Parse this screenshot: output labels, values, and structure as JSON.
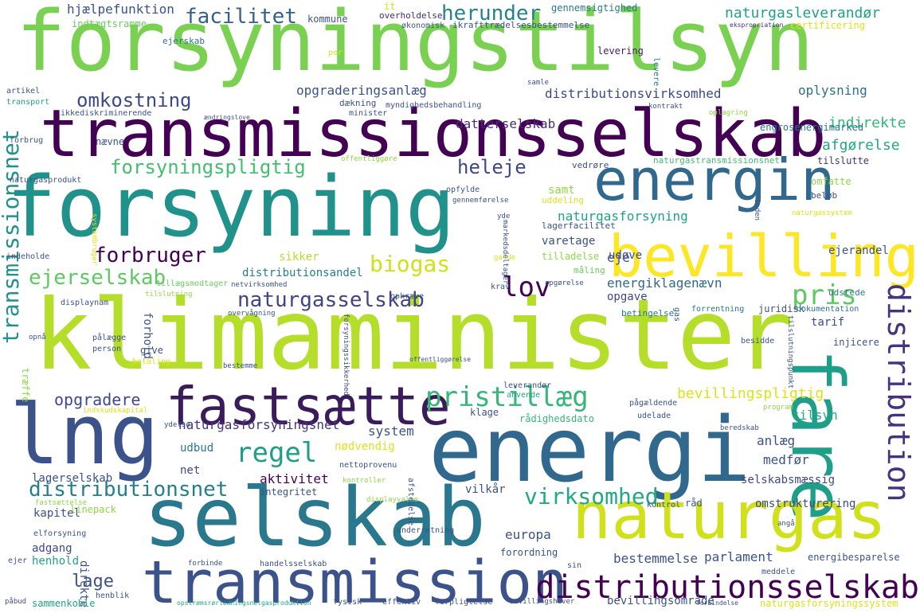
{
  "words": [
    {
      "text": "forsyningstilsyn",
      "color": "#7ad151"
    },
    {
      "text": "transmissionsselskab",
      "color": "#440154"
    },
    {
      "text": "forsyning",
      "color": "#21918c"
    },
    {
      "text": "energin",
      "color": "#31688e"
    },
    {
      "text": "bevilling",
      "color": "#fde725"
    },
    {
      "text": "klimaminister",
      "color": "#b5de2b"
    },
    {
      "text": "fastsætte",
      "color": "#3b1c5a"
    },
    {
      "text": "lng",
      "color": "#3b528b"
    },
    {
      "text": "energi",
      "color": "#31688e"
    },
    {
      "text": "fare",
      "color": "#1f9e89"
    },
    {
      "text": "selskab",
      "color": "#2a788e"
    },
    {
      "text": "naturgas",
      "color": "#d0e11c"
    },
    {
      "text": "transmission",
      "color": "#3b528b"
    },
    {
      "text": "distributionsselskab",
      "color": "#440154"
    },
    {
      "text": "distribution",
      "color": "#46337e"
    },
    {
      "text": "transmissionsnet",
      "color": "#21918c"
    },
    {
      "text": "distributionsnet",
      "color": "#277f8e"
    },
    {
      "text": "pristillæg",
      "color": "#35b779"
    },
    {
      "text": "regel",
      "color": "#1f9e89"
    },
    {
      "text": "virksomhed",
      "color": "#22a884"
    },
    {
      "text": "naturgasselskab",
      "color": "#414487"
    },
    {
      "text": "ejerselskab",
      "color": "#5ec962"
    },
    {
      "text": "forbruger",
      "color": "#440154"
    },
    {
      "text": "biogas",
      "color": "#d0e11c"
    },
    {
      "text": "lov",
      "color": "#440154"
    },
    {
      "text": "pris",
      "color": "#5ec962"
    },
    {
      "text": "forsyningspligtig",
      "color": "#44bf70"
    },
    {
      "text": "heleje",
      "color": "#404688"
    },
    {
      "text": "omkostning",
      "color": "#3e4989"
    },
    {
      "text": "facilitet",
      "color": "#355f8d"
    },
    {
      "text": "herunder",
      "color": "#26828e"
    },
    {
      "text": "naturgasleverandør",
      "color": "#20a386"
    },
    {
      "text": "hjælpefunktion",
      "color": "#3b528b"
    },
    {
      "text": "indtægtsramme",
      "color": "#6ccd5a"
    },
    {
      "text": "kommune",
      "color": "#3b528b"
    },
    {
      "text": "ejerskab",
      "color": "#2c728e"
    },
    {
      "text": "gennemsigtighed",
      "color": "#2a788e"
    },
    {
      "text": "overholdelse",
      "color": "#482878"
    },
    {
      "text": "økonomisk",
      "color": "#38598c"
    },
    {
      "text": "ikrafttrædelsesbestemmelse",
      "color": "#3b528b"
    },
    {
      "text": "certificering",
      "color": "#dde318"
    },
    {
      "text": "ekspropriation",
      "color": "#472d7b"
    },
    {
      "text": "levering",
      "color": "#481a6c"
    },
    {
      "text": "levere",
      "color": "#2c728e"
    },
    {
      "text": "opgraderingsanlæg",
      "color": "#3b528b"
    },
    {
      "text": "distributionsvirksomhed",
      "color": "#3e4989"
    },
    {
      "text": "oplysning",
      "color": "#2d708e"
    },
    {
      "text": "datterselskab",
      "color": "#472c7a"
    },
    {
      "text": "indirekte",
      "color": "#35b779"
    },
    {
      "text": "afgørelse",
      "color": "#22a884"
    },
    {
      "text": "engrosenergimarked",
      "color": "#2a788e"
    },
    {
      "text": "naturgastransmissionsnet",
      "color": "#3fbc73"
    },
    {
      "text": "tilslutte",
      "color": "#46337e"
    },
    {
      "text": "naturgasforsyning",
      "color": "#20a386"
    },
    {
      "text": "samt",
      "color": "#8fd744"
    },
    {
      "text": "varetage",
      "color": "#3b528b"
    },
    {
      "text": "udøve",
      "color": "#3e4989"
    },
    {
      "text": "ejerandel",
      "color": "#3b528b"
    },
    {
      "text": "eje",
      "color": "#3b528b"
    },
    {
      "text": "tilladelse",
      "color": "#8fd744"
    },
    {
      "text": "måling",
      "color": "#6ccd5a"
    },
    {
      "text": "energiklagenævn",
      "color": "#31688e"
    },
    {
      "text": "opgave",
      "color": "#3e4989"
    },
    {
      "text": "sikker",
      "color": "#b5de2b"
    },
    {
      "text": "distributionsandel",
      "color": "#277f8e"
    },
    {
      "text": "tillægsmodtager",
      "color": "#6ccd5a"
    },
    {
      "text": "nævne",
      "color": "#3b528b"
    },
    {
      "text": "juridisk",
      "color": "#3b528b"
    },
    {
      "text": "tarif",
      "color": "#3e4989"
    },
    {
      "text": "betingelse",
      "color": "#2a788e"
    },
    {
      "text": "forrentning",
      "color": "#2a788e"
    },
    {
      "text": "dokumentation",
      "color": "#2c728e"
    },
    {
      "text": "injicere",
      "color": "#3b528b"
    },
    {
      "text": "udstede",
      "color": "#2a788e"
    },
    {
      "text": "besidde",
      "color": "#3b528b"
    },
    {
      "text": "bevillingspligtig",
      "color": "#dde318"
    },
    {
      "text": "tilsyn",
      "color": "#22a884"
    },
    {
      "text": "opgradere",
      "color": "#3e4989"
    },
    {
      "text": "naturgasforsyningsnet",
      "color": "#46337e"
    },
    {
      "text": "system",
      "color": "#3b528b"
    },
    {
      "text": "udbud",
      "color": "#2a788e"
    },
    {
      "text": "nødvendig",
      "color": "#dde318"
    },
    {
      "text": "anlæg",
      "color": "#3b528b"
    },
    {
      "text": "medfør",
      "color": "#3b528b"
    },
    {
      "text": "net",
      "color": "#3e4989"
    },
    {
      "text": "aktivitet",
      "color": "#440154"
    },
    {
      "text": "lagerselskab",
      "color": "#3b528b"
    },
    {
      "text": "selskabsmæssig",
      "color": "#3e4989"
    },
    {
      "text": "kapitel",
      "color": "#3b528b"
    },
    {
      "text": "integritet",
      "color": "#3b528b"
    },
    {
      "text": "vilkår",
      "color": "#3b528b"
    },
    {
      "text": "omstrukturering",
      "color": "#3e4989"
    },
    {
      "text": "adgang",
      "color": "#3e4989"
    },
    {
      "text": "henhold",
      "color": "#20a386"
    },
    {
      "text": "europa",
      "color": "#3b528b"
    },
    {
      "text": "lage",
      "color": "#3b528b"
    },
    {
      "text": "bestemmelse",
      "color": "#3b528b"
    },
    {
      "text": "parlament",
      "color": "#3b528b"
    },
    {
      "text": "forordning",
      "color": "#3b528b"
    },
    {
      "text": "energibesparelse",
      "color": "#3b528b"
    },
    {
      "text": "bevillingsområde",
      "color": "#3b528b"
    },
    {
      "text": "naturgasforsyningssystem",
      "color": "#dde318"
    },
    {
      "text": "effektiv",
      "color": "#3b528b"
    },
    {
      "text": "direkte",
      "color": "#3b528b"
    },
    {
      "text": "sammenkoble",
      "color": "#20a386"
    },
    {
      "text": "rådighedsdato",
      "color": "#35b779"
    },
    {
      "text": "klage",
      "color": "#3b528b"
    },
    {
      "text": "linepack",
      "color": "#8fd744"
    },
    {
      "text": "kontrol",
      "color": "#3b528b"
    },
    {
      "text": "råd",
      "color": "#3b528b"
    },
    {
      "text": "give",
      "color": "#3b528b"
    },
    {
      "text": "træffe",
      "color": "#8fd744"
    },
    {
      "text": "forhold",
      "color": "#3b528b"
    },
    {
      "text": "person",
      "color": "#3b528b"
    },
    {
      "text": "displaynam",
      "color": "#3b528b"
    },
    {
      "text": "indeholde",
      "color": "#3b528b"
    },
    {
      "text": "forbrug",
      "color": "#3b528b"
    },
    {
      "text": "naturgasprodukt",
      "color": "#3b528b"
    },
    {
      "text": "artikel",
      "color": "#3b528b"
    },
    {
      "text": "transport",
      "color": "#20a386"
    },
    {
      "text": "ikkediskriminerende",
      "color": "#3b528b"
    },
    {
      "text": "dækning",
      "color": "#3b528b"
    },
    {
      "text": "myndighedsbehandling",
      "color": "#3b528b"
    },
    {
      "text": "minister",
      "color": "#3b528b"
    },
    {
      "text": "kontrakt",
      "color": "#3b528b"
    },
    {
      "text": "oplagring",
      "color": "#8fd744"
    },
    {
      "text": "uddeling",
      "color": "#dde318"
    },
    {
      "text": "lagerfacilitet",
      "color": "#3b528b"
    },
    {
      "text": "beløb",
      "color": "#3b528b"
    },
    {
      "text": "omfatte",
      "color": "#8fd744"
    },
    {
      "text": "vedrøre",
      "color": "#3b528b"
    },
    {
      "text": "opfylde",
      "color": "#3b528b"
    },
    {
      "text": "gennemførelse",
      "color": "#3b528b"
    },
    {
      "text": "offentliggøre",
      "color": "#8fd744"
    },
    {
      "text": "netvirksomhed",
      "color": "#3b528b"
    },
    {
      "text": "opkræve",
      "color": "#3b528b"
    },
    {
      "text": "krav",
      "color": "#3b528b"
    },
    {
      "text": "opgørelse",
      "color": "#3b528b"
    },
    {
      "text": "pålægge",
      "color": "#3b528b"
    },
    {
      "text": "betaling",
      "color": "#dde318"
    },
    {
      "text": "leverandør",
      "color": "#3b528b"
    },
    {
      "text": "anvende",
      "color": "#20a386"
    },
    {
      "text": "ydelse",
      "color": "#3b528b"
    },
    {
      "text": "pågældende",
      "color": "#3b528b"
    },
    {
      "text": "udelade",
      "color": "#3b528b"
    },
    {
      "text": "beredskab",
      "color": "#3b528b"
    },
    {
      "text": "program",
      "color": "#8fd744"
    },
    {
      "text": "underretning",
      "color": "#3b528b"
    },
    {
      "text": "kontroller",
      "color": "#8fd744"
    },
    {
      "text": "nettoprovenu",
      "color": "#3b528b"
    },
    {
      "text": "fastsættelse",
      "color": "#8fd744"
    },
    {
      "text": "displayvalue",
      "color": "#8fd744"
    },
    {
      "text": "elforsyning",
      "color": "#3b528b"
    },
    {
      "text": "forbinde",
      "color": "#3b528b"
    },
    {
      "text": "handelsselskab",
      "color": "#3b528b"
    },
    {
      "text": "meddele",
      "color": "#3b528b"
    },
    {
      "text": "opstrømsrørledningsnetgasproduktion",
      "color": "#20a386"
    },
    {
      "text": "fysisk",
      "color": "#3b528b"
    },
    {
      "text": "bevillingshaver",
      "color": "#3b528b"
    },
    {
      "text": "forpligtelse",
      "color": "#3b528b"
    },
    {
      "text": "henblik",
      "color": "#3b528b"
    },
    {
      "text": "påbud",
      "color": "#3b528b"
    },
    {
      "text": "ejer",
      "color": "#3b528b"
    },
    {
      "text": "forbindelse",
      "color": "#3b528b"
    },
    {
      "text": "afstedelse",
      "color": "#3b528b"
    },
    {
      "text": "indskudskapital",
      "color": "#dde318"
    },
    {
      "text": "overvågning",
      "color": "#3b528b"
    },
    {
      "text": "forsyningssikkerhed",
      "color": "#3b528b"
    },
    {
      "text": "offentliggørelse",
      "color": "#3b528b"
    },
    {
      "text": "tilslutningspunkt",
      "color": "#3b528b"
    },
    {
      "text": "markedsdeltager",
      "color": "#3b528b"
    },
    {
      "text": "samle",
      "color": "#3b528b"
    },
    {
      "text": "tilslutning",
      "color": "#8fd744"
    },
    {
      "text": "opnå",
      "color": "#3b528b"
    },
    {
      "text": "ændringslove",
      "color": "#3b528b"
    },
    {
      "text": "naturgassystem",
      "color": "#dde318"
    },
    {
      "text": "inden",
      "color": "#3b528b"
    },
    {
      "text": "yde",
      "color": "#3b528b"
    },
    {
      "text": "systembruger",
      "color": "#dde318"
    },
    {
      "text": "gas",
      "color": "#3b528b"
    },
    {
      "text": "galde",
      "color": "#dde318"
    },
    {
      "text": "bestemme",
      "color": "#3b528b"
    },
    {
      "text": "it",
      "color": "#dde318"
    },
    {
      "text": "per",
      "color": "#dde318"
    },
    {
      "text": "sin",
      "color": "#3b528b"
    },
    {
      "text": "angå",
      "color": "#3b528b"
    }
  ]
}
